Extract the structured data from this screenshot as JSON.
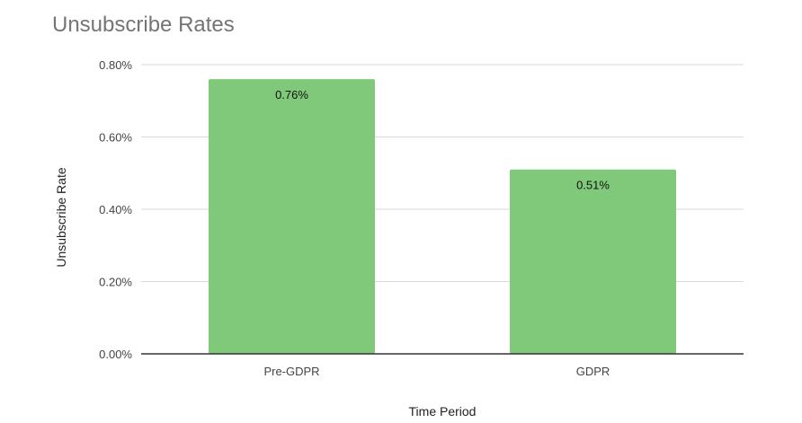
{
  "chart_data": {
    "type": "bar",
    "title": "Unsubscribe Rates",
    "xlabel": "Time Period",
    "ylabel": "Unsubscribe Rate",
    "categories": [
      "Pre-GDPR",
      "GDPR"
    ],
    "values": [
      0.76,
      0.51
    ],
    "value_labels": [
      "0.76%",
      "0.51%"
    ],
    "ylim": [
      0,
      0.8
    ],
    "yticks": [
      0,
      0.2,
      0.4,
      0.6,
      0.8
    ],
    "ytick_labels": [
      "0.00%",
      "0.20%",
      "0.40%",
      "0.60%",
      "0.80%"
    ],
    "grid": true,
    "legend": "none",
    "colors": {
      "bar": "#81c97a",
      "gridline": "#d9d9d9",
      "baseline": "#333333",
      "title": "#757575"
    }
  }
}
